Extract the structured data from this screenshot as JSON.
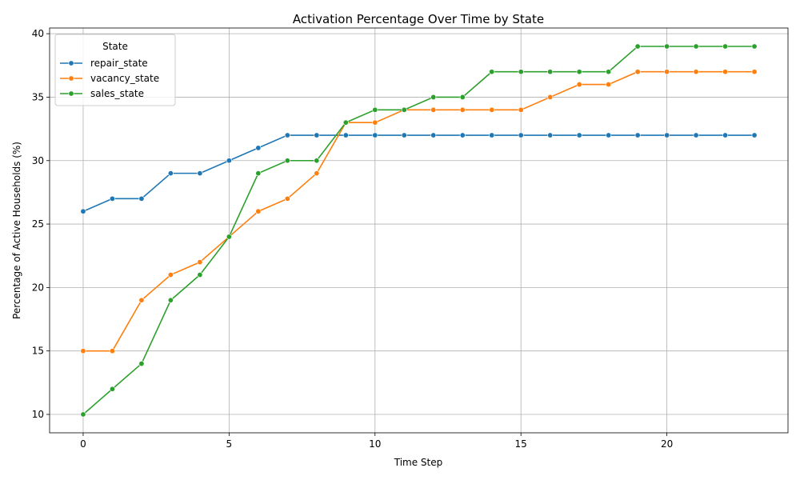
{
  "chart_data": {
    "type": "line",
    "title": "Activation Percentage Over Time by State",
    "xlabel": "Time Step",
    "ylabel": "Percentage of Active Households (%)",
    "xlim": [
      -1.15,
      24.15
    ],
    "ylim": [
      8.55,
      40.45
    ],
    "xticks": [
      0,
      5,
      10,
      15,
      20
    ],
    "yticks": [
      10,
      15,
      20,
      25,
      30,
      35,
      40
    ],
    "grid": true,
    "legend": {
      "title": "State",
      "placement": "upper-left"
    },
    "x": [
      0,
      1,
      2,
      3,
      4,
      5,
      6,
      7,
      8,
      9,
      10,
      11,
      12,
      13,
      14,
      15,
      16,
      17,
      18,
      19,
      20,
      21,
      22,
      23
    ],
    "series": [
      {
        "name": "repair_state",
        "color": "#1f77b4",
        "values": [
          26,
          27,
          27,
          29,
          29,
          30,
          31,
          32,
          32,
          32,
          32,
          32,
          32,
          32,
          32,
          32,
          32,
          32,
          32,
          32,
          32,
          32,
          32,
          32
        ]
      },
      {
        "name": "vacancy_state",
        "color": "#ff7f0e",
        "values": [
          15,
          15,
          19,
          21,
          22,
          24,
          26,
          27,
          29,
          33,
          33,
          34,
          34,
          34,
          34,
          34,
          35,
          36,
          36,
          37,
          37,
          37,
          37,
          37
        ]
      },
      {
        "name": "sales_state",
        "color": "#2ca02c",
        "values": [
          10,
          12,
          14,
          19,
          21,
          24,
          29,
          30,
          30,
          33,
          34,
          34,
          35,
          35,
          37,
          37,
          37,
          37,
          37,
          39,
          39,
          39,
          39,
          39
        ]
      }
    ]
  }
}
